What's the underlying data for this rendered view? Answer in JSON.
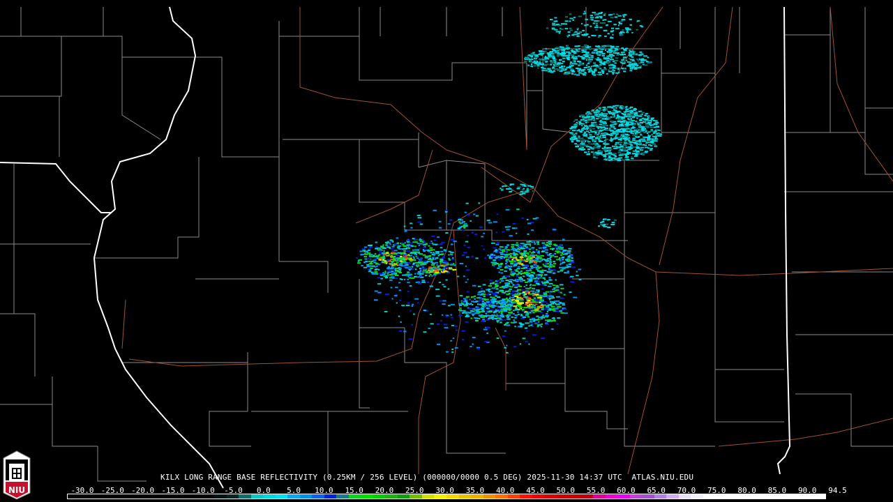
{
  "caption": {
    "station": "KILX",
    "product": "LONG RANGE BASE REFLECTIVITY (0.25KM / 256 LEVEL)",
    "scan": "(000000/0000 0.5 DEG)",
    "datetime": "2025-11-30 14:37 UTC",
    "site": "ATLAS.NIU.EDU"
  },
  "legend": {
    "unit_range": [
      -30.0,
      94.5
    ],
    "tick_labels": [
      "-30.0",
      "-25.0",
      "-20.0",
      "-15.0",
      "-10.0",
      "-5.0",
      "0.0",
      "5.0",
      "10.0",
      "15.0",
      "20.0",
      "25.0",
      "30.0",
      "35.0",
      "40.0",
      "45.0",
      "50.0",
      "55.0",
      "60.0",
      "65.0",
      "70.0",
      "75.0",
      "80.0",
      "85.0",
      "90.0",
      "94.5"
    ],
    "colors": [
      "#000000",
      "#000000",
      "#000000",
      "#000000",
      "#000000",
      "#000000",
      "#000000",
      "#000000",
      "#000000",
      "#000000",
      "#000000",
      "#000000",
      "#031414",
      "#0a2424",
      "#0e6e6e",
      "#08c8c8",
      "#00d8e0",
      "#00e0f0",
      "#0aa8f0",
      "#0090f0",
      "#1060f0",
      "#0020e0",
      "#1a7a8a",
      "#10d020",
      "#00e000",
      "#00d000",
      "#20b010",
      "#10a010",
      "#70c000",
      "#d0e000",
      "#f0f000",
      "#f0d800",
      "#e8c000",
      "#f0b000",
      "#f09000",
      "#ff7000",
      "#ff4000",
      "#ff1000",
      "#f00000",
      "#e00000",
      "#d00000",
      "#c80000",
      "#c00010",
      "#e00090",
      "#f000d0",
      "#e800f0",
      "#c040e0",
      "#a050d0",
      "#b080e0",
      "#d0b0f0",
      "#e8e0f8",
      "#f4f0fc",
      "#ffffff",
      "#ffffff",
      "#ffffff",
      "#ffffff",
      "#ffffff",
      "#ffffff",
      "#ffffff",
      "#ffffff",
      "#ffffff",
      "#ffffff"
    ]
  },
  "logo": {
    "text": "NIU",
    "color": "#c8102e"
  },
  "map": {
    "county_color": "#8a8a8a",
    "state_color": "#ffffff",
    "road_color": "#a0522d",
    "radar_site": "KILX"
  }
}
